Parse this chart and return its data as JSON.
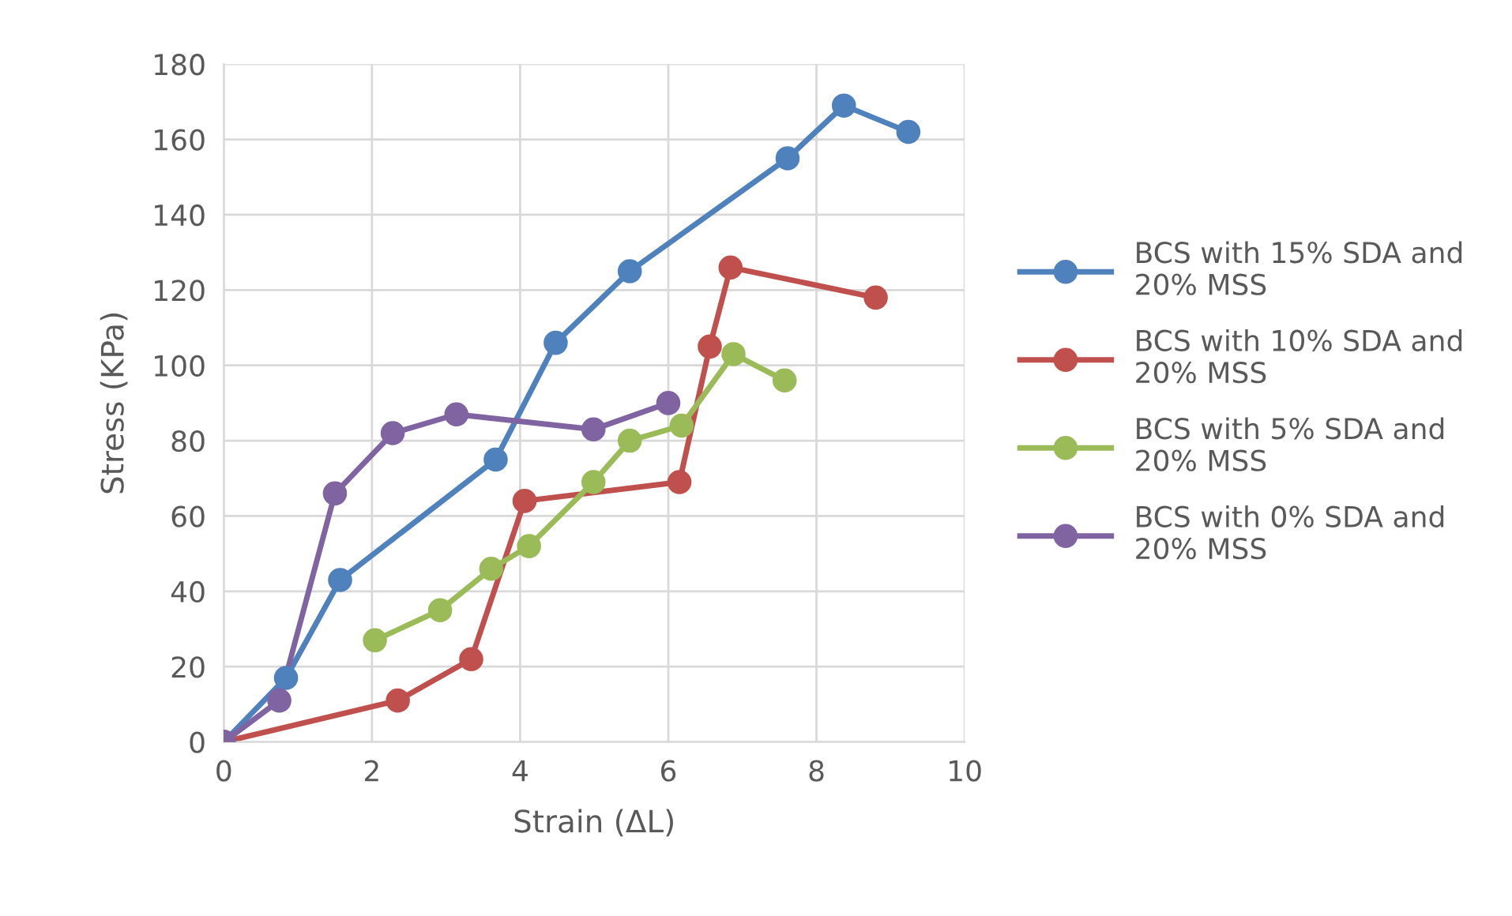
{
  "chart_data": {
    "type": "line",
    "xlabel": "Strain (ΔL)",
    "ylabel": "Stress (KPa)",
    "xlim": [
      0,
      10
    ],
    "xticks": [
      0,
      2,
      4,
      6,
      8,
      10
    ],
    "ylim": [
      0,
      180
    ],
    "yticks": [
      0,
      20,
      40,
      60,
      80,
      100,
      120,
      140,
      160,
      180
    ],
    "grid": true,
    "legend": "right",
    "marker": "circle",
    "line_style": "solid",
    "series": [
      {
        "name": "BCS with 15% SDA and 20% MSS",
        "color": "#4f81bd",
        "x": [
          0,
          0.84,
          1.57,
          3.67,
          4.48,
          5.48,
          7.61,
          8.37,
          9.24
        ],
        "values": [
          0,
          17,
          43,
          75,
          106,
          125,
          155,
          169,
          162
        ]
      },
      {
        "name": "BCS with 10% SDA and 20% MSS",
        "color": "#c0504d",
        "x": [
          0,
          2.35,
          3.34,
          4.06,
          6.15,
          6.56,
          6.84,
          8.8
        ],
        "values": [
          0,
          11,
          22,
          64,
          69,
          105,
          126,
          118
        ]
      },
      {
        "name": "BCS with 5% SDA and 20% MSS",
        "color": "#9bbb59",
        "x": [
          2.04,
          2.92,
          3.61,
          4.12,
          4.99,
          5.48,
          6.18,
          6.88,
          7.57
        ],
        "values": [
          27,
          35,
          46,
          52,
          69,
          80,
          84,
          103,
          96
        ]
      },
      {
        "name": "BCS with 0% SDA and 20% MSS",
        "color": "#8064a2",
        "x": [
          0,
          0.75,
          1.5,
          2.28,
          3.14,
          4.99,
          6.0
        ],
        "values": [
          0,
          11,
          66,
          82,
          87,
          83,
          90
        ]
      }
    ]
  }
}
